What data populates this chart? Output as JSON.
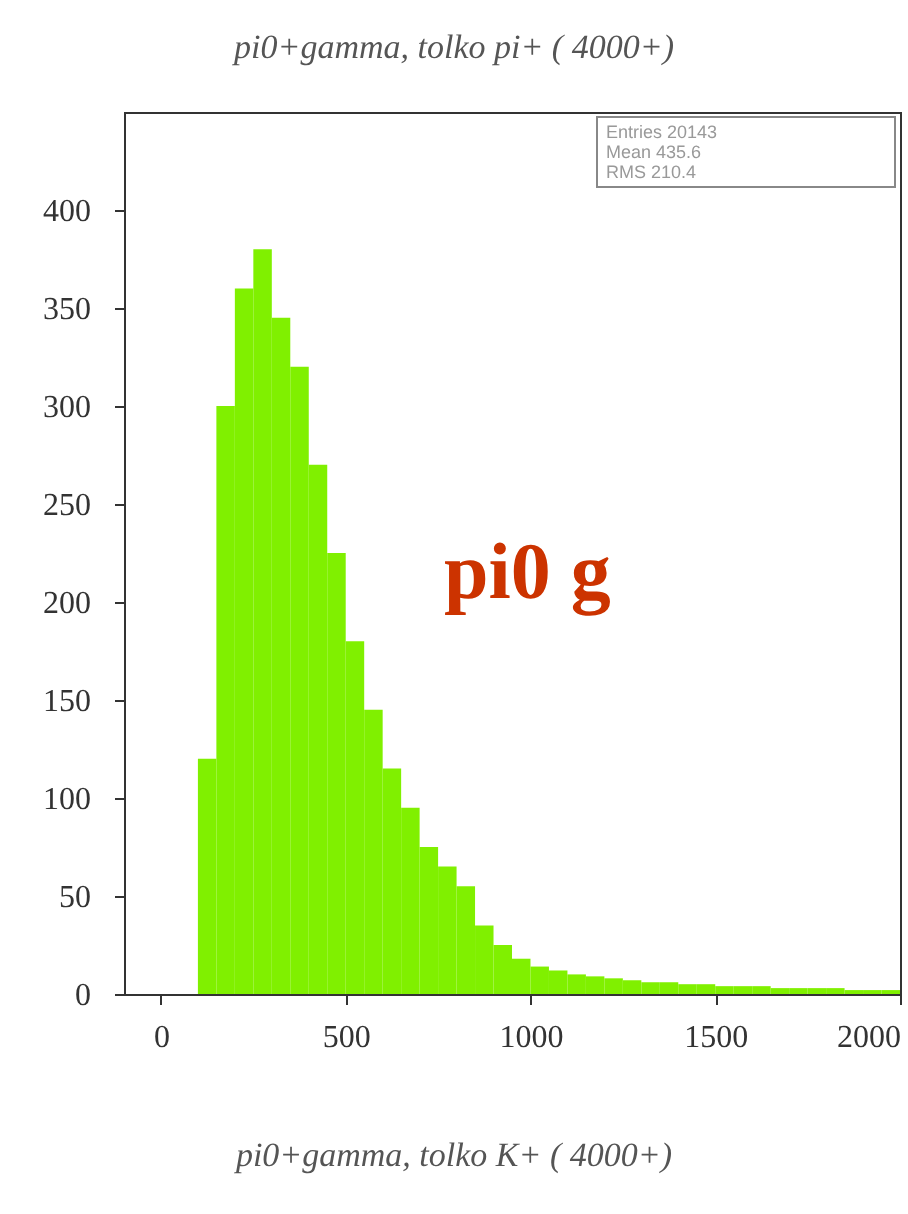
{
  "chart_data": {
    "type": "histogram",
    "title": "pi0+gamma, tolko pi+ ( 4000+)",
    "bins": [
      0,
      50,
      100,
      150,
      200,
      250,
      300,
      350,
      400,
      450,
      500,
      550,
      600,
      650,
      700,
      750,
      800,
      850,
      900,
      950,
      1000,
      1050,
      1100,
      1150,
      1200,
      1250,
      1300,
      1350,
      1400,
      1450,
      1500,
      1550,
      1600,
      1650,
      1700,
      1750,
      1800,
      1850,
      1900,
      1950,
      2000
    ],
    "values": [
      0,
      0,
      120,
      300,
      360,
      380,
      345,
      320,
      270,
      225,
      180,
      145,
      115,
      95,
      75,
      65,
      55,
      35,
      25,
      18,
      14,
      12,
      10,
      9,
      8,
      7,
      6,
      6,
      5,
      5,
      4,
      4,
      4,
      3,
      3,
      3,
      3,
      2,
      2,
      2
    ],
    "color": "#80f000",
    "xlim": [
      -100,
      2000
    ],
    "ylim": [
      0,
      450
    ],
    "xticks": [
      0,
      500,
      1000,
      1500,
      2000
    ],
    "yticks": [
      0,
      50,
      100,
      150,
      200,
      250,
      300,
      350,
      400
    ],
    "annotations": [
      "Entries 20143",
      "Mean 435.6",
      "RMS 210.4",
      "pi0 g",
      "pi0+gamma, tolko K+ ( 4000+)"
    ]
  }
}
